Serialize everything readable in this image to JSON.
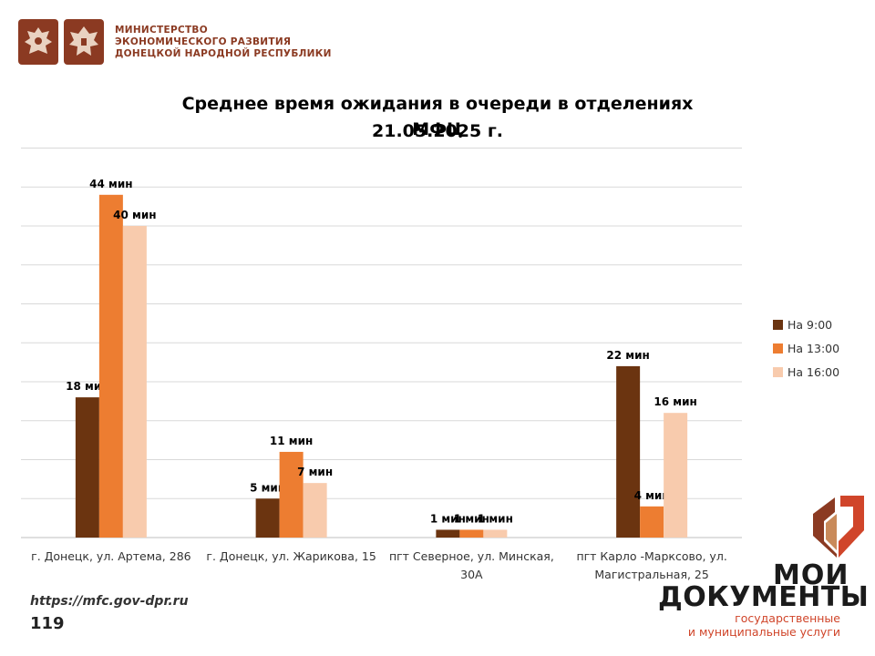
{
  "header": {
    "ministry_lines": [
      "МИНИСТЕРСТВО",
      "ЭКОНОМИЧЕСКОГО РАЗВИТИЯ",
      "ДОНЕЦКОЙ НАРОДНОЙ РЕСПУБЛИКИ"
    ]
  },
  "title_lines": [
    "Среднее время ожидания в очереди в отделениях МФЦ",
    "21.05.2025 г."
  ],
  "colors": {
    "s1": "#6b3410",
    "s2": "#ed7d31",
    "s3": "#f8cbad",
    "brand": "#8b3a22",
    "accent": "#d0452a"
  },
  "chart_data": {
    "type": "bar",
    "title": "Среднее время ожидания в очереди в отделениях МФЦ 21.05.2025 г.",
    "categories": [
      [
        "г. Донецк, ул. Артема, 286"
      ],
      [
        "г. Донецк, ул. Жарикова, 15"
      ],
      [
        "пгт Северное, ул. Минская,",
        "30А"
      ],
      [
        "пгт Карло -Марксово, ул.",
        "Магистральная, 25"
      ]
    ],
    "series": [
      {
        "name": "На 9:00",
        "values": [
          18,
          5,
          1,
          22
        ],
        "labels": [
          "18 мин",
          "5 мин",
          "1 мин",
          "22 мин"
        ]
      },
      {
        "name": "На 13:00",
        "values": [
          44,
          11,
          1,
          4
        ],
        "labels": [
          "44 мин",
          "11 мин",
          "1 мин",
          "4 мин"
        ]
      },
      {
        "name": "На 16:00",
        "values": [
          40,
          7,
          1,
          16
        ],
        "labels": [
          "40 мин",
          "7 мин",
          "1 мин",
          "16 мин"
        ]
      }
    ],
    "ylim": [
      0,
      50
    ],
    "grid": true,
    "legend_position": "right"
  },
  "footer": {
    "url": "https://mfc.gov-dpr.ru",
    "page": "119"
  },
  "brand": {
    "word1": "МОИ",
    "word2": "ДОКУМЕНТЫ",
    "sub1": "государственные",
    "sub2": "и муниципальные услуги"
  }
}
